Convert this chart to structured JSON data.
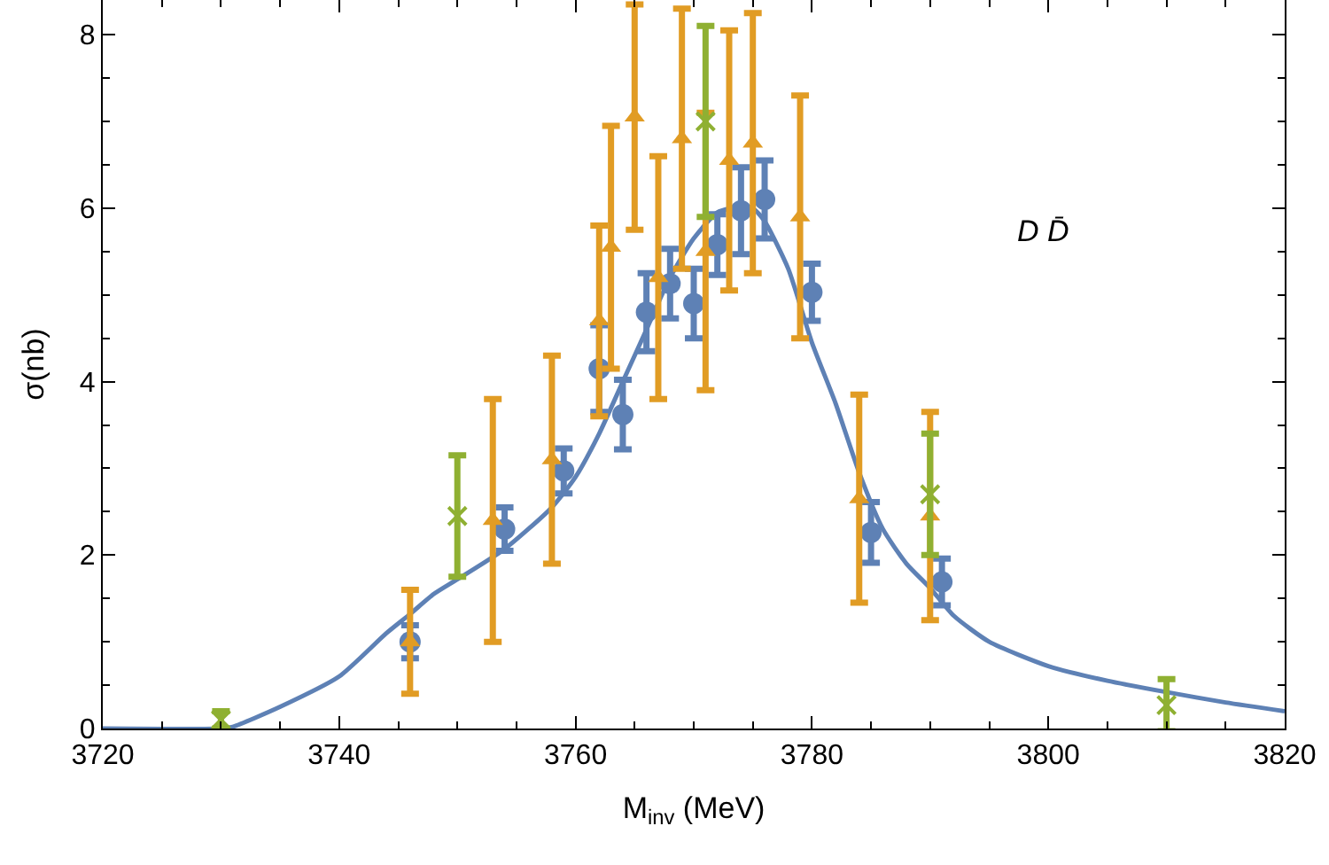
{
  "chart_data": {
    "type": "scatter",
    "xlabel": "M$_{inv}$ (MeV)",
    "ylabel": "σ(nb)",
    "xlim": [
      3720,
      3820
    ],
    "xticks": [
      3720,
      3740,
      3760,
      3780,
      3800,
      3820
    ],
    "ylim": [
      0,
      8.4
    ],
    "yticks": [
      0,
      2,
      4,
      6,
      8
    ],
    "annotations": [
      "D D̄"
    ],
    "series": [
      {
        "type": "line",
        "color": "#5e81b5",
        "marker": "none",
        "line_style": "solid",
        "x": [
          3720,
          3730,
          3731,
          3735,
          3740,
          3744,
          3746,
          3748,
          3750,
          3754,
          3758,
          3760,
          3762,
          3764,
          3766,
          3768,
          3770,
          3772,
          3774,
          3775,
          3776,
          3778,
          3780,
          3782,
          3784,
          3786,
          3788,
          3790,
          3792,
          3795,
          3800,
          3805,
          3810,
          3815,
          3820
        ],
        "values": [
          0,
          0,
          0.02,
          0.25,
          0.6,
          1.1,
          1.32,
          1.55,
          1.72,
          2.07,
          2.55,
          2.9,
          3.4,
          4.0,
          4.6,
          5.2,
          5.65,
          5.95,
          6.02,
          6.0,
          5.85,
          5.3,
          4.45,
          3.75,
          2.95,
          2.3,
          1.9,
          1.62,
          1.3,
          1.0,
          0.72,
          0.55,
          0.42,
          0.3,
          0.2
        ]
      },
      {
        "color": "#5e81b5",
        "marker": "circle",
        "x": [
          3746,
          3754,
          3759,
          3762,
          3764,
          3766,
          3768,
          3770,
          3772,
          3774,
          3776,
          3780,
          3785,
          3791
        ],
        "values": [
          1.0,
          2.3,
          2.97,
          4.15,
          3.62,
          4.8,
          5.13,
          4.9,
          5.58,
          5.97,
          6.1,
          5.03,
          2.26,
          1.69
        ],
        "errors": [
          0.19,
          0.25,
          0.26,
          0.5,
          0.4,
          0.45,
          0.4,
          0.4,
          0.35,
          0.5,
          0.45,
          0.33,
          0.35,
          0.27
        ]
      },
      {
        "color": "#e19c24",
        "marker": "triangle",
        "x": [
          3746,
          3753,
          3758,
          3762,
          3763,
          3765,
          3767,
          3769,
          3771,
          3773,
          3775,
          3779,
          3784,
          3790
        ],
        "values": [
          1.0,
          2.4,
          3.1,
          4.7,
          5.55,
          7.05,
          5.2,
          6.8,
          5.5,
          6.55,
          6.75,
          5.9,
          2.65,
          2.45
        ],
        "errors": [
          0.6,
          1.4,
          1.2,
          1.1,
          1.4,
          1.3,
          1.4,
          1.5,
          1.6,
          1.5,
          1.5,
          1.4,
          1.2,
          1.2
        ]
      },
      {
        "color": "#8fb032",
        "marker": "cross",
        "x": [
          3730,
          3750,
          3771,
          3790,
          3810
        ],
        "values": [
          0.1,
          2.45,
          7.0,
          2.7,
          0.27
        ],
        "errors": [
          0.1,
          0.7,
          1.1,
          0.7,
          0.3
        ]
      }
    ]
  }
}
